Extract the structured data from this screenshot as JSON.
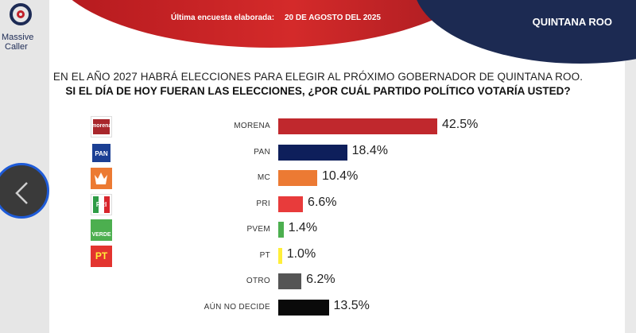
{
  "header": {
    "survey_label": "Última encuesta elaborada:",
    "survey_date": "20 DE AGOSTO DEL 2025",
    "state": "QUINTANA ROO"
  },
  "logo": {
    "line1": "Massive",
    "line2": "Caller"
  },
  "question": {
    "line1": "EN EL AÑO 2027 HABRÁ ELECCIONES PARA ELEGIR AL PRÓXIMO GOBERNADOR DE QUINTANA ROO.",
    "line2": "SI EL DÍA DE HOY FUERAN LAS ELECCIONES, ¿POR CUÁL PARTIDO POLÍTICO VOTARÍA USTED?"
  },
  "icons": {
    "nav": "chevron-left-icon"
  },
  "chart_data": {
    "type": "bar",
    "orientation": "horizontal",
    "categories": [
      "MORENA",
      "PAN",
      "MC",
      "PRI",
      "PVEM",
      "PT",
      "OTRO",
      "AÚN NO DECIDE"
    ],
    "values": [
      42.5,
      18.4,
      10.4,
      6.6,
      1.4,
      1.0,
      6.2,
      13.5
    ],
    "value_labels": [
      "42.5%",
      "18.4%",
      "10.4%",
      "6.6%",
      "1.4%",
      "1.0%",
      "6.2%",
      "13.5%"
    ],
    "colors": [
      "#c0282d",
      "#0e1f5b",
      "#ec7a33",
      "#e83b3b",
      "#4caf4f",
      "#ffef3a",
      "#555555",
      "#0a0a0a"
    ],
    "logo_text": [
      "morena",
      "PAN",
      "",
      "PRI",
      "VERDE",
      "PT",
      "",
      ""
    ],
    "xlim": [
      0,
      45
    ],
    "grid": false,
    "legend": "none"
  }
}
